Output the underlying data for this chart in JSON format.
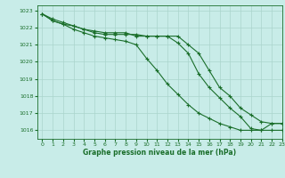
{
  "title": "Graphe pression niveau de la mer (hPa)",
  "bg_color": "#c8ece8",
  "grid_color": "#aad4cc",
  "line_color": "#1a6e2a",
  "xlim": [
    -0.5,
    23
  ],
  "ylim": [
    1015.5,
    1023.3
  ],
  "yticks": [
    1016,
    1017,
    1018,
    1019,
    1020,
    1021,
    1022,
    1023
  ],
  "xticks": [
    0,
    1,
    2,
    3,
    4,
    5,
    6,
    7,
    8,
    9,
    10,
    11,
    12,
    13,
    14,
    15,
    16,
    17,
    18,
    19,
    20,
    21,
    22,
    23
  ],
  "series1_x": [
    0,
    1,
    2,
    3,
    4,
    5,
    6,
    7,
    8,
    9,
    10,
    11,
    12,
    13,
    14,
    15,
    16,
    17,
    18,
    19,
    20,
    21,
    22,
    23
  ],
  "series1_y": [
    1022.8,
    1022.4,
    1022.2,
    1022.1,
    1021.9,
    1021.7,
    1021.6,
    1021.6,
    1021.6,
    1021.6,
    1021.5,
    1021.5,
    1021.5,
    1021.1,
    1020.5,
    1019.3,
    1018.5,
    1017.9,
    1017.3,
    1016.8,
    1016.1,
    1016.0,
    1016.0,
    1016.0
  ],
  "series2_x": [
    0,
    1,
    2,
    3,
    4,
    5,
    6,
    7,
    8,
    9,
    10,
    11,
    12,
    13,
    14,
    15,
    16,
    17,
    18,
    19,
    20,
    21,
    22,
    23
  ],
  "series2_y": [
    1022.8,
    1022.5,
    1022.3,
    1022.1,
    1021.9,
    1021.8,
    1021.7,
    1021.7,
    1021.7,
    1021.5,
    1021.5,
    1021.5,
    1021.5,
    1021.5,
    1021.0,
    1020.5,
    1019.5,
    1018.5,
    1018.0,
    1017.3,
    1016.9,
    1016.5,
    1016.4,
    1016.4
  ],
  "series3_x": [
    0,
    1,
    2,
    3,
    4,
    5,
    6,
    7,
    8,
    9,
    10,
    11,
    12,
    13,
    14,
    15,
    16,
    17,
    18,
    19,
    20,
    21,
    22,
    23
  ],
  "series3_y": [
    1022.8,
    1022.4,
    1022.2,
    1021.9,
    1021.7,
    1021.5,
    1021.4,
    1021.3,
    1021.2,
    1021.0,
    1020.2,
    1019.5,
    1018.7,
    1018.1,
    1017.5,
    1017.0,
    1016.7,
    1016.4,
    1016.2,
    1016.0,
    1016.0,
    1016.0,
    1016.4,
    1016.4
  ]
}
